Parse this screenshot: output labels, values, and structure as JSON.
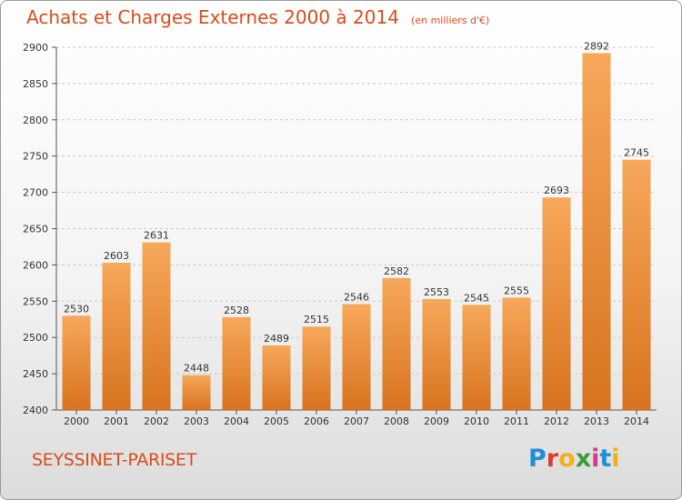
{
  "header": {
    "title": "Achats et Charges Externes 2000 à 2014",
    "subtitle": "(en milliers d'€)"
  },
  "footer": {
    "commune": "SEYSSINET-PARISET",
    "logo_letters": [
      "P",
      "r",
      "o",
      "x",
      "i",
      "t",
      "i"
    ]
  },
  "colors": {
    "title": "#d94c1c",
    "bar_top": "#f7a85a",
    "bar_bottom": "#d8731e",
    "axis": "#555555",
    "grid": "#c8c8c8"
  },
  "chart_data": {
    "type": "bar",
    "title": "Achats et Charges Externes 2000 à 2014",
    "subtitle": "(en milliers d'€)",
    "xlabel": "",
    "ylabel": "",
    "categories": [
      "2000",
      "2001",
      "2002",
      "2003",
      "2004",
      "2005",
      "2006",
      "2007",
      "2008",
      "2009",
      "2010",
      "2011",
      "2012",
      "2013",
      "2014"
    ],
    "values": [
      2530,
      2603,
      2631,
      2448,
      2528,
      2489,
      2515,
      2546,
      2582,
      2553,
      2545,
      2555,
      2693,
      2892,
      2745
    ],
    "ylim": [
      2400,
      2900
    ],
    "yticks": [
      2400,
      2450,
      2500,
      2550,
      2600,
      2650,
      2700,
      2750,
      2800,
      2850,
      2900
    ],
    "grid": "horizontal",
    "legend": "none",
    "data_labels": true
  }
}
